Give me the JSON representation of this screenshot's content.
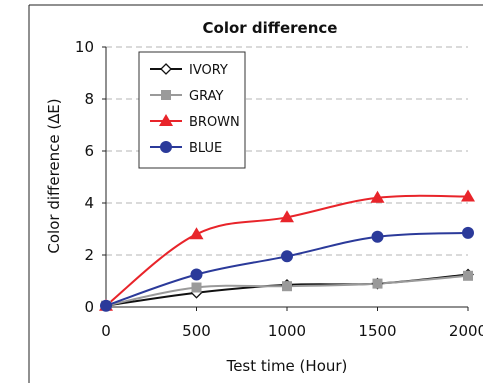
{
  "chart_data": {
    "type": "line",
    "title": "Color difference",
    "xlabel": "Test time (Hour)",
    "ylabel": "Color difference (∆E)",
    "x": [
      0,
      500,
      1000,
      1500,
      2000
    ],
    "xlim": [
      0,
      2000
    ],
    "ylim": [
      0,
      10
    ],
    "xticks": [
      "0",
      "500",
      "1000",
      "1500",
      "2000"
    ],
    "yticks": [
      "0",
      "2",
      "4",
      "6",
      "8",
      "10"
    ],
    "grid": "horizontal dashed",
    "legend_position": "top-left",
    "series": [
      {
        "name": "IVORY",
        "values": [
          0.05,
          0.55,
          0.85,
          0.9,
          1.25
        ],
        "color": "#111111",
        "marker": "diamond-open"
      },
      {
        "name": "GRAY",
        "values": [
          0.05,
          0.75,
          0.8,
          0.9,
          1.2
        ],
        "color": "#9a9a9a",
        "marker": "square"
      },
      {
        "name": "BROWN",
        "values": [
          0.05,
          2.8,
          3.45,
          4.2,
          4.25
        ],
        "color": "#e8242a",
        "marker": "triangle"
      },
      {
        "name": "BLUE",
        "values": [
          0.05,
          1.25,
          1.95,
          2.7,
          2.85
        ],
        "color": "#2b3a9a",
        "marker": "circle"
      }
    ]
  }
}
